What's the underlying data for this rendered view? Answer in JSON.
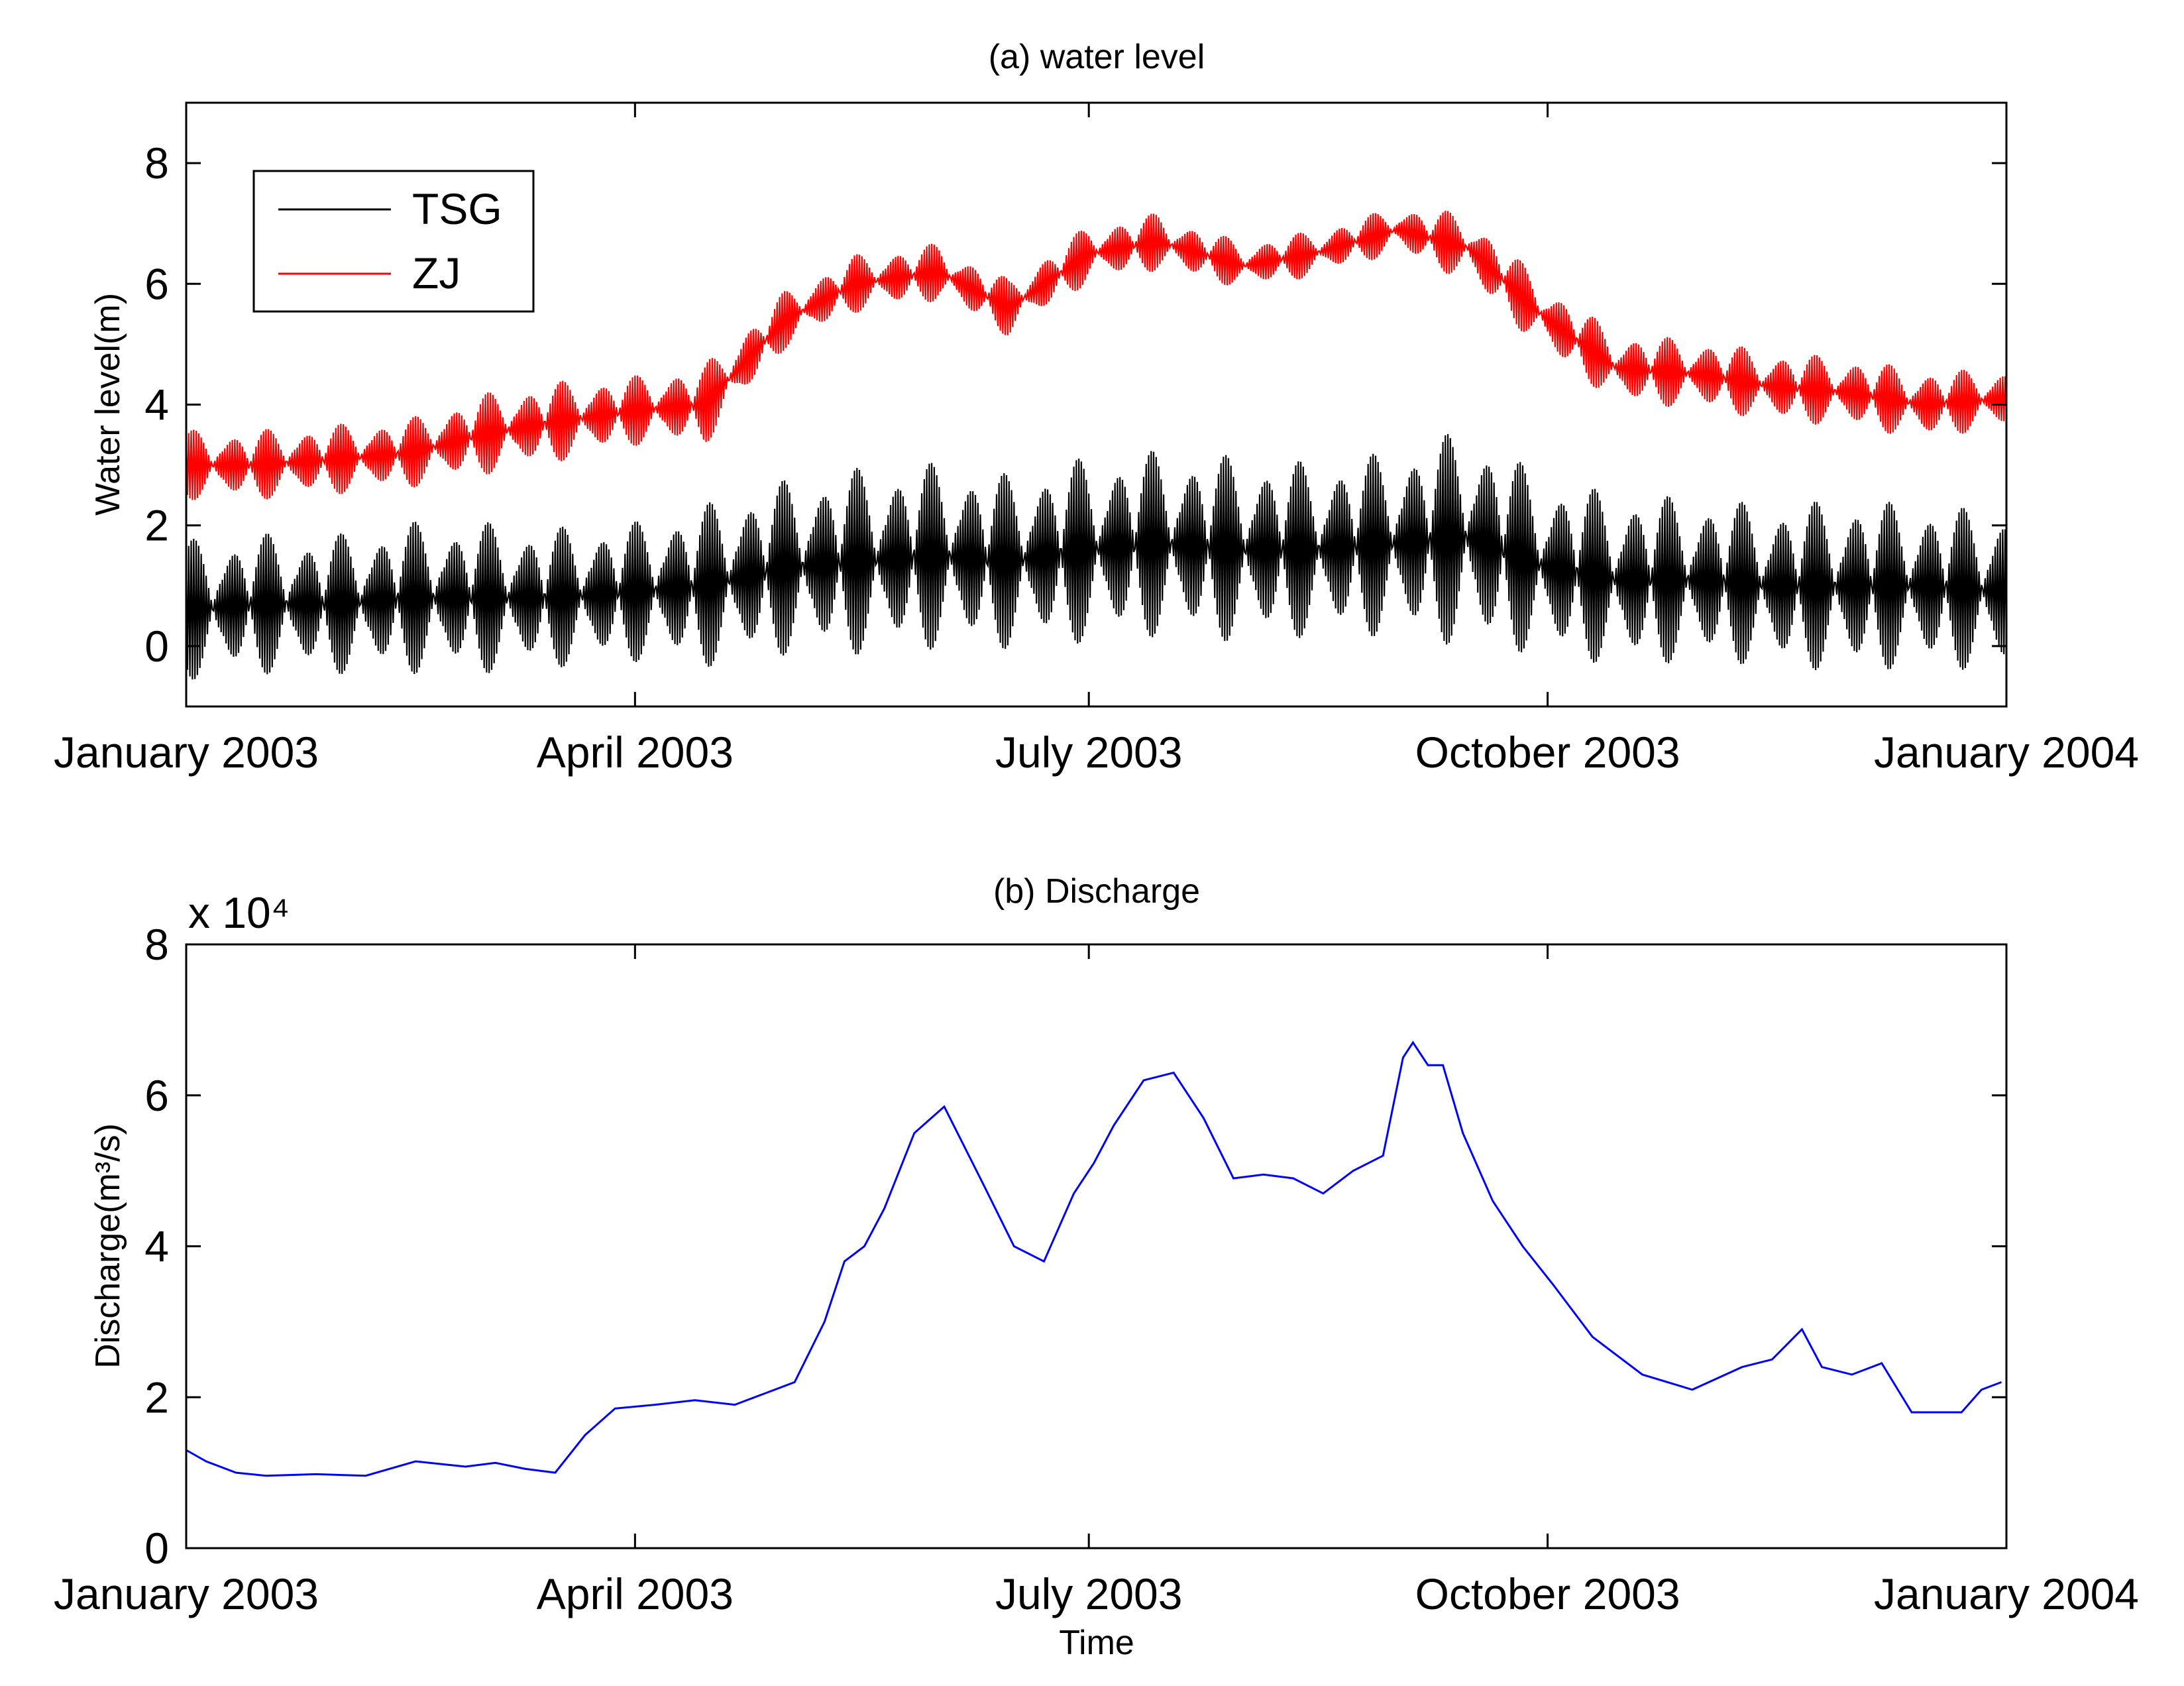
{
  "chart_data": [
    {
      "type": "line",
      "title": "(a) water level",
      "xlabel": "",
      "ylabel": "Water level(m)",
      "ylim": [
        -1,
        9
      ],
      "yticks": [
        0,
        2,
        4,
        6,
        8
      ],
      "ytick_labels": [
        "0",
        "2",
        "4",
        "6",
        "8"
      ],
      "xlim": [
        "2003-01-01",
        "2004-01-01"
      ],
      "xticks": [
        "2003-01-01",
        "2003-04-01",
        "2003-07-01",
        "2003-10-01",
        "2004-01-01"
      ],
      "xtick_labels": [
        "January 2003",
        "April 2003",
        "July 2003",
        "October 2003",
        "January 2004"
      ],
      "legend": {
        "placement": "top-left",
        "entries": [
          "TSG",
          "ZJ"
        ]
      },
      "series": [
        {
          "name": "TSG",
          "color": "#000000",
          "note": "approximate envelope (mean and half tidal range) read off the figure",
          "x": [
            "2003-01-01",
            "2003-01-15",
            "2003-02-01",
            "2003-02-15",
            "2003-03-01",
            "2003-03-15",
            "2003-04-01",
            "2003-04-15",
            "2003-05-01",
            "2003-05-15",
            "2003-06-01",
            "2003-06-15",
            "2003-07-01",
            "2003-07-15",
            "2003-08-01",
            "2003-08-15",
            "2003-09-01",
            "2003-09-15",
            "2003-10-01",
            "2003-10-15",
            "2003-11-01",
            "2003-11-15",
            "2003-12-01",
            "2003-12-15",
            "2004-01-01"
          ],
          "mean": [
            0.6,
            0.7,
            0.7,
            0.8,
            0.8,
            0.8,
            0.9,
            1.0,
            1.3,
            1.4,
            1.5,
            1.4,
            1.6,
            1.7,
            1.6,
            1.6,
            1.7,
            1.8,
            1.3,
            1.1,
            1.1,
            1.0,
            1.0,
            1.0,
            0.9
          ],
          "half_range": [
            1.2,
            1.2,
            1.2,
            1.3,
            1.3,
            1.2,
            1.2,
            1.4,
            1.5,
            1.6,
            1.6,
            1.5,
            1.6,
            1.6,
            1.6,
            1.5,
            1.6,
            1.9,
            1.5,
            1.5,
            1.4,
            1.4,
            1.5,
            1.4,
            1.4
          ]
        },
        {
          "name": "ZJ",
          "color": "#ff0000",
          "note": "approximate envelope (mean and half tidal range) read off the figure",
          "x": [
            "2003-01-01",
            "2003-01-15",
            "2003-02-01",
            "2003-02-15",
            "2003-03-01",
            "2003-03-15",
            "2003-04-01",
            "2003-04-15",
            "2003-05-01",
            "2003-05-15",
            "2003-06-01",
            "2003-06-15",
            "2003-07-01",
            "2003-07-15",
            "2003-08-01",
            "2003-08-15",
            "2003-09-01",
            "2003-09-15",
            "2003-10-01",
            "2003-10-15",
            "2003-11-01",
            "2003-11-15",
            "2003-12-01",
            "2003-12-15",
            "2004-01-01"
          ],
          "mean": [
            3.0,
            3.0,
            3.1,
            3.2,
            3.5,
            3.7,
            3.9,
            4.0,
            5.4,
            6.0,
            6.2,
            5.6,
            6.5,
            6.7,
            6.3,
            6.5,
            6.9,
            6.6,
            5.4,
            4.6,
            4.5,
            4.3,
            4.2,
            4.0,
            4.1
          ],
          "half_range": [
            0.6,
            0.6,
            0.6,
            0.6,
            0.7,
            0.7,
            0.6,
            0.7,
            0.5,
            0.5,
            0.5,
            0.5,
            0.5,
            0.5,
            0.4,
            0.4,
            0.4,
            0.6,
            0.6,
            0.6,
            0.6,
            0.6,
            0.6,
            0.6,
            0.5
          ]
        }
      ]
    },
    {
      "type": "line",
      "title": "(b) Discharge",
      "xlabel": "Time",
      "ylabel": "Discharge(m³/s)",
      "yscale_label": "x 10⁴",
      "ylim": [
        0,
        80000
      ],
      "yticks": [
        0,
        20000,
        40000,
        60000,
        80000
      ],
      "ytick_labels": [
        "0",
        "2",
        "4",
        "6",
        "8"
      ],
      "xlim": [
        "2003-01-01",
        "2004-01-01"
      ],
      "xticks": [
        "2003-01-01",
        "2003-04-01",
        "2003-07-01",
        "2003-10-01",
        "2004-01-01"
      ],
      "xtick_labels": [
        "January 2003",
        "April 2003",
        "July 2003",
        "October 2003",
        "January 2004"
      ],
      "series": [
        {
          "name": "Discharge",
          "color": "#0000ff",
          "day_of_year": [
            0,
            4,
            10,
            16,
            26,
            36,
            46,
            56,
            62,
            68,
            74,
            80,
            86,
            94,
            102,
            110,
            116,
            122,
            128,
            132,
            136,
            140,
            146,
            152,
            160,
            166,
            172,
            178,
            182,
            186,
            192,
            198,
            204,
            210,
            216,
            222,
            228,
            234,
            240,
            244,
            246,
            249,
            252,
            256,
            262,
            268,
            274,
            282,
            292,
            302,
            312,
            318,
            324,
            328,
            334,
            340,
            346,
            352,
            356,
            360,
            364
          ],
          "values": [
            13000,
            11500,
            10000,
            9600,
            9800,
            9600,
            11500,
            10800,
            11300,
            10500,
            10000,
            15000,
            18500,
            19000,
            19600,
            19000,
            20500,
            22000,
            30000,
            38000,
            40000,
            45000,
            55000,
            58500,
            48000,
            40000,
            38000,
            47000,
            51000,
            56000,
            62000,
            63000,
            57000,
            49000,
            49500,
            49000,
            47000,
            50000,
            52000,
            65000,
            67000,
            64000,
            64000,
            55000,
            46000,
            40000,
            35000,
            28000,
            23000,
            21000,
            24000,
            25000,
            29000,
            24000,
            23000,
            24500,
            18000,
            18000,
            18000,
            21000,
            22000
          ]
        }
      ]
    }
  ]
}
